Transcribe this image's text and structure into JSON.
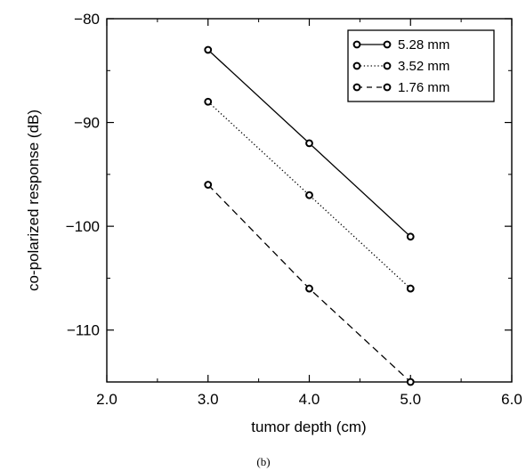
{
  "chart_data": {
    "type": "line",
    "xlabel": "tumor depth (cm)",
    "ylabel": "co-polarized response (dB)",
    "xlim": [
      2.0,
      6.0
    ],
    "ylim": [
      -115,
      -80
    ],
    "xticks": [
      2.0,
      3.0,
      4.0,
      5.0,
      6.0
    ],
    "xtick_labels": [
      "2.0",
      "3.0",
      "4.0",
      "5.0",
      "6.0"
    ],
    "yticks": [
      -80,
      -90,
      -100,
      -110
    ],
    "ytick_labels": [
      "−80",
      "−90",
      "−100",
      "−110"
    ],
    "grid": false,
    "legend_position": "top-right",
    "caption": "(b)",
    "series": [
      {
        "name": "5.28 mm",
        "style": "solid",
        "marker": "circle",
        "x": [
          3.0,
          4.0,
          5.0
        ],
        "y": [
          -83,
          -92,
          -101
        ]
      },
      {
        "name": "3.52 mm",
        "style": "dotted",
        "marker": "circle",
        "x": [
          3.0,
          4.0,
          5.0
        ],
        "y": [
          -88,
          -97,
          -106
        ]
      },
      {
        "name": "1.76 mm",
        "style": "dashed",
        "marker": "circle",
        "x": [
          3.0,
          4.0,
          5.0
        ],
        "y": [
          -96,
          -106,
          -115
        ]
      }
    ]
  }
}
